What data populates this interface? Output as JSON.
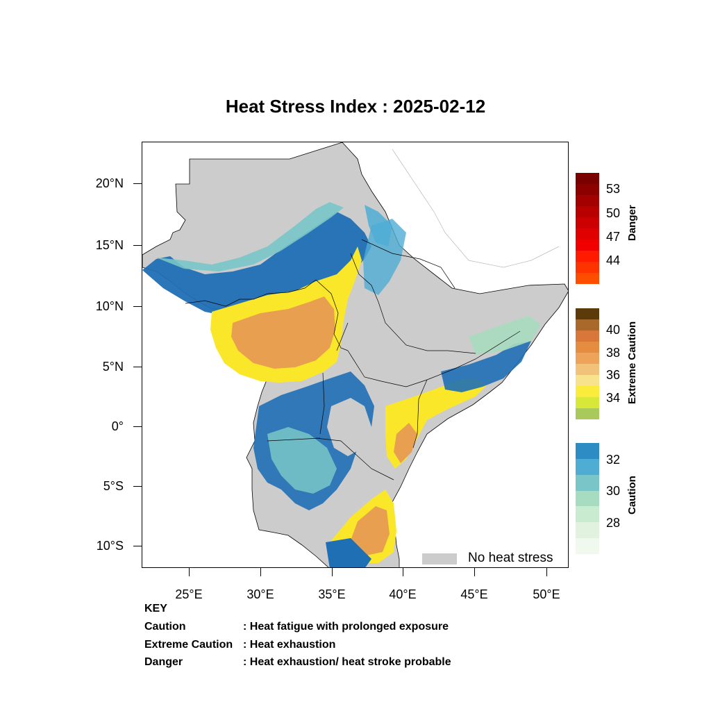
{
  "title": "Heat Stress Index : 2025-02-12",
  "axes": {
    "y_labels": [
      "20°N",
      "15°N",
      "10°N",
      "5°N",
      "0°",
      "5°S",
      "10°S"
    ],
    "x_labels": [
      "25°E",
      "30°E",
      "35°E",
      "40°E",
      "45°E",
      "50°E"
    ]
  },
  "legend": {
    "no_heat_stress": "No heat stress",
    "no_heat_stress_color": "#cccccc"
  },
  "colorbars": [
    {
      "title": "Danger",
      "ticks": [
        "53",
        "50",
        "47",
        "44"
      ],
      "colors": [
        "#7a0000",
        "#8c0000",
        "#a30000",
        "#b80000",
        "#cc0000",
        "#e00000",
        "#f20000",
        "#ff1a00",
        "#ff3300",
        "#ff4d00"
      ]
    },
    {
      "title": "Extreme Caution",
      "ticks": [
        "40",
        "38",
        "36",
        "34"
      ],
      "colors": [
        "#5c3a0a",
        "#a8692a",
        "#d9773a",
        "#e68c40",
        "#eea35a",
        "#f3c27a",
        "#f9e28c",
        "#fbeb3b",
        "#d8e83a",
        "#a9c95b"
      ]
    },
    {
      "title": "Caution",
      "ticks": [
        "32",
        "30",
        "28"
      ],
      "colors": [
        "#2c8cc3",
        "#4fadd4",
        "#79c5c8",
        "#a8dcc0",
        "#c9ebcf",
        "#e1f3df",
        "#f1f9ee"
      ]
    }
  ],
  "key": {
    "heading": "KEY",
    "rows": [
      {
        "term": "Caution",
        "definition": ": Heat fatigue with prolonged exposure"
      },
      {
        "term": "Extreme Caution",
        "definition": " : Heat exhaustion"
      },
      {
        "term": "Danger",
        "definition": ": Heat exhaustion/ heat stroke probable"
      }
    ]
  },
  "map_colors": {
    "no_stress": "#cccccc",
    "caution_dark": "#1f6fb5",
    "caution_mid": "#4fadd4",
    "caution_light": "#79c5c8",
    "caution_pale": "#a8dcc0",
    "extreme_yellow": "#fbe72a",
    "extreme_orange": "#e8a050",
    "extreme_tan": "#f3c27a"
  }
}
